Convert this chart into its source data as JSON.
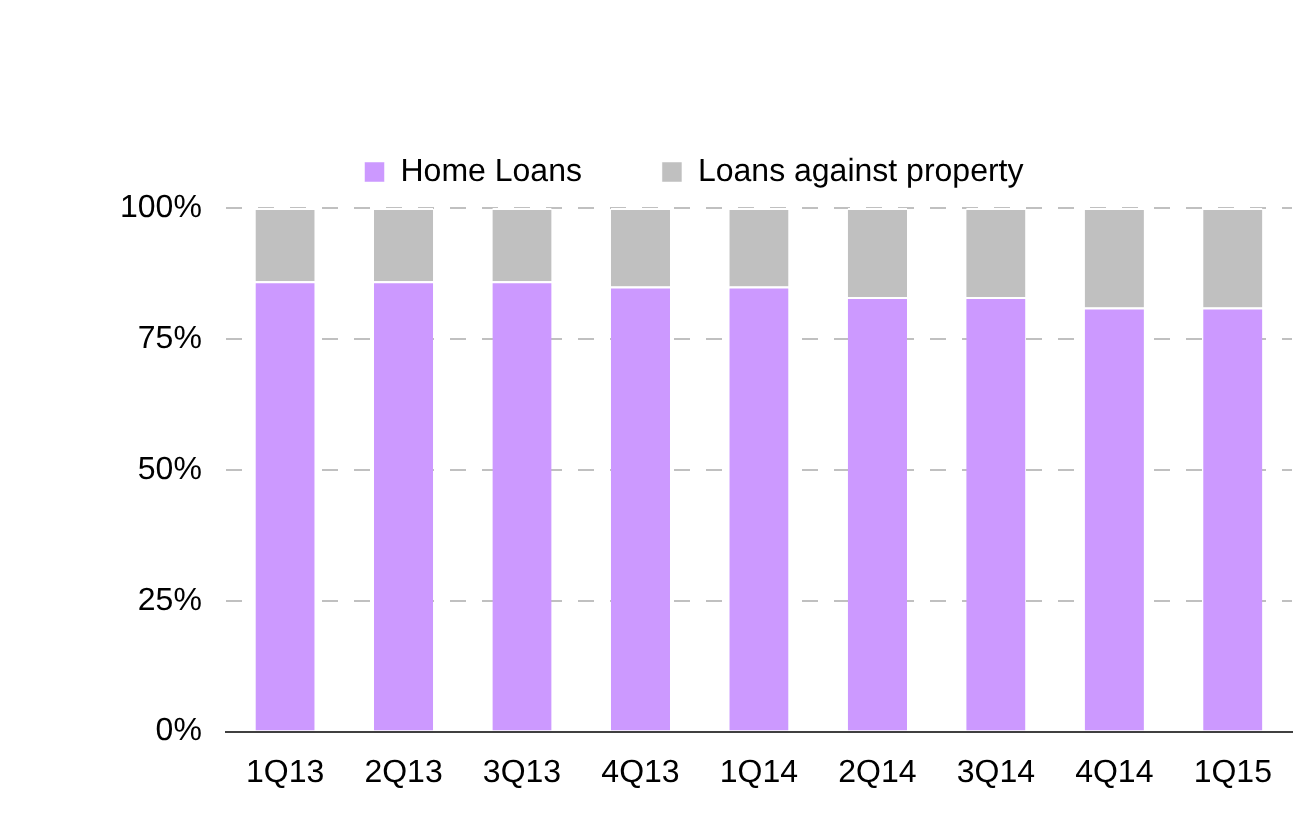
{
  "chart_data": {
    "type": "bar",
    "stacked": true,
    "categories": [
      "1Q13",
      "2Q13",
      "3Q13",
      "4Q13",
      "1Q14",
      "2Q14",
      "3Q14",
      "4Q14",
      "1Q15"
    ],
    "series": [
      {
        "name": "Home Loans",
        "color": "#cc99ff",
        "values": [
          86,
          86,
          86,
          85,
          85,
          83,
          83,
          81,
          81
        ]
      },
      {
        "name": "Loans against property",
        "color": "#c0c0c0",
        "values": [
          14,
          14,
          14,
          15,
          15,
          17,
          17,
          19,
          19
        ]
      }
    ],
    "ylim": [
      0,
      100
    ],
    "yticks": [
      {
        "value": 0,
        "label": "0%"
      },
      {
        "value": 25,
        "label": "25%"
      },
      {
        "value": 50,
        "label": "50%"
      },
      {
        "value": 75,
        "label": "75%"
      },
      {
        "value": 100,
        "label": "100%"
      }
    ],
    "grid": "y",
    "legend": "top"
  }
}
